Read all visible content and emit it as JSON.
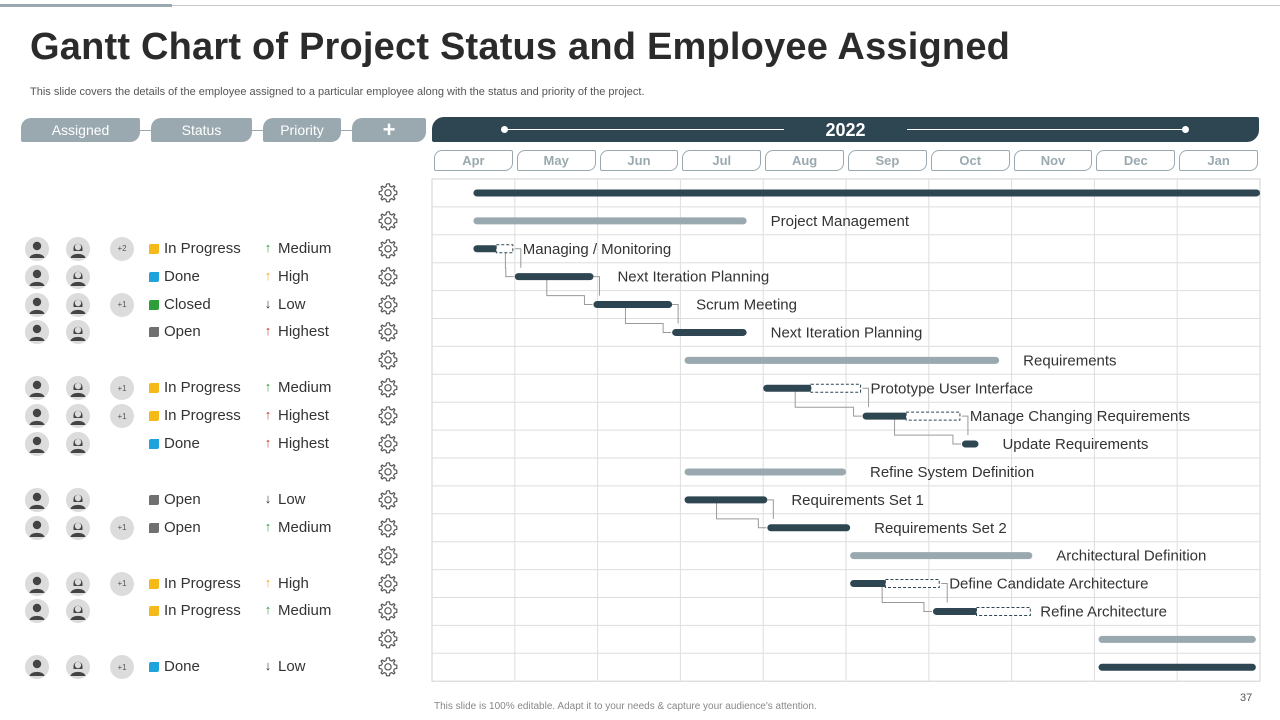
{
  "title": "Gantt Chart of Project Status and Employee Assigned",
  "subtitle": "This slide covers the details of the employee assigned to a particular employee along with the status and priority of the project.",
  "columns": {
    "assigned": "Assigned",
    "status": "Status",
    "priority": "Priority",
    "add": "+"
  },
  "footer": "This slide is 100% editable. Adapt it to your needs & capture your audience's attention.",
  "page_number": "37",
  "colors": {
    "dark": "#2d4652",
    "light": "#9aa9b0",
    "in_progress": "#f5b91a",
    "done": "#1fa3dc",
    "closed": "#2e9e3b",
    "open": "#707070",
    "up_green": "#2e9e3b",
    "up_orange": "#f5a623",
    "up_red": "#c0392b",
    "down": "#333333"
  },
  "rows": [
    {
      "assigned": null
    },
    {
      "assigned": null
    },
    {
      "assigned": {
        "extra": "+2"
      },
      "status": "In Progress",
      "status_key": "in_progress",
      "priority": "Medium",
      "arrow": "↑",
      "arrow_key": "up_green"
    },
    {
      "assigned": {
        "extra": ""
      },
      "status": "Done",
      "status_key": "done",
      "priority": "High",
      "arrow": "↑",
      "arrow_key": "up_orange"
    },
    {
      "assigned": {
        "extra": "+1"
      },
      "status": "Closed",
      "status_key": "closed",
      "priority": "Low",
      "arrow": "↓",
      "arrow_key": "down"
    },
    {
      "assigned": {
        "extra": ""
      },
      "status": "Open",
      "status_key": "open",
      "priority": "Highest",
      "arrow": "↑",
      "arrow_key": "up_red"
    },
    {
      "assigned": null
    },
    {
      "assigned": {
        "extra": "+1"
      },
      "status": "In Progress",
      "status_key": "in_progress",
      "priority": "Medium",
      "arrow": "↑",
      "arrow_key": "up_green"
    },
    {
      "assigned": {
        "extra": "+1"
      },
      "status": "In Progress",
      "status_key": "in_progress",
      "priority": "Highest",
      "arrow": "↑",
      "arrow_key": "up_red"
    },
    {
      "assigned": {
        "extra": ""
      },
      "status": "Done",
      "status_key": "done",
      "priority": "Highest",
      "arrow": "↑",
      "arrow_key": "up_red"
    },
    {
      "assigned": null
    },
    {
      "assigned": {
        "extra": ""
      },
      "status": "Open",
      "status_key": "open",
      "priority": "Low",
      "arrow": "↓",
      "arrow_key": "down"
    },
    {
      "assigned": {
        "extra": "+1"
      },
      "status": "Open",
      "status_key": "open",
      "priority": "Medium",
      "arrow": "↑",
      "arrow_key": "up_green"
    },
    {
      "assigned": null
    },
    {
      "assigned": {
        "extra": "+1"
      },
      "status": "In Progress",
      "status_key": "in_progress",
      "priority": "High",
      "arrow": "↑",
      "arrow_key": "up_orange"
    },
    {
      "assigned": {
        "extra": ""
      },
      "status": "In Progress",
      "status_key": "in_progress",
      "priority": "Medium",
      "arrow": "↑",
      "arrow_key": "up_green"
    },
    {
      "assigned": null
    },
    {
      "assigned": {
        "extra": "+1"
      },
      "status": "Done",
      "status_key": "done",
      "priority": "Low",
      "arrow": "↓",
      "arrow_key": "down"
    }
  ],
  "chart_data": {
    "type": "gantt",
    "year": "2022",
    "months": [
      "Apr",
      "May",
      "Jun",
      "Jul",
      "Aug",
      "Sep",
      "Oct",
      "Nov",
      "Dec",
      "Jan"
    ],
    "tasks": [
      {
        "label": "",
        "start": 0.5,
        "end": 10.0,
        "style": "dark",
        "thick": true
      },
      {
        "label": "Project Management",
        "start": 0.5,
        "end": 3.8,
        "style": "light"
      },
      {
        "label": "Managing / Monitoring",
        "start": 0.5,
        "end": 0.8,
        "dashed_end": 1.0,
        "style": "dark"
      },
      {
        "label": "Next Iteration Planning",
        "start": 1.0,
        "end": 1.95,
        "style": "dark"
      },
      {
        "label": "Scrum Meeting",
        "start": 1.95,
        "end": 2.9,
        "style": "dark"
      },
      {
        "label": "Next Iteration Planning",
        "start": 2.9,
        "end": 3.8,
        "style": "dark"
      },
      {
        "label": "Requirements",
        "start": 3.05,
        "end": 6.85,
        "style": "light"
      },
      {
        "label": "Prototype User Interface",
        "start": 4.0,
        "end": 4.6,
        "dashed_end": 5.2,
        "style": "dark"
      },
      {
        "label": "Manage Changing Requirements",
        "start": 5.2,
        "end": 5.75,
        "dashed_end": 6.4,
        "style": "dark"
      },
      {
        "label": "Update Requirements",
        "start": 6.4,
        "end": 6.6,
        "style": "dark"
      },
      {
        "label": "Refine System Definition",
        "start": 3.05,
        "end": 5.0,
        "style": "light"
      },
      {
        "label": "Requirements Set 1",
        "start": 3.05,
        "end": 4.05,
        "style": "dark"
      },
      {
        "label": "Requirements Set 2",
        "start": 4.05,
        "end": 5.05,
        "style": "dark"
      },
      {
        "label": "Architectural Definition",
        "start": 5.05,
        "end": 7.25,
        "style": "light"
      },
      {
        "label": "Define Candidate Architecture",
        "start": 5.05,
        "end": 5.5,
        "dashed_end": 6.15,
        "style": "dark"
      },
      {
        "label": "Refine Architecture",
        "start": 6.05,
        "end": 6.6,
        "dashed_end": 7.25,
        "style": "dark"
      },
      {
        "label": "",
        "start": 8.05,
        "end": 9.95,
        "style": "light"
      },
      {
        "label": "",
        "start": 8.05,
        "end": 9.95,
        "style": "dark"
      }
    ],
    "links": [
      [
        2,
        3
      ],
      [
        3,
        4
      ],
      [
        4,
        5
      ],
      [
        7,
        8
      ],
      [
        8,
        9
      ],
      [
        11,
        12
      ],
      [
        14,
        15
      ]
    ]
  }
}
